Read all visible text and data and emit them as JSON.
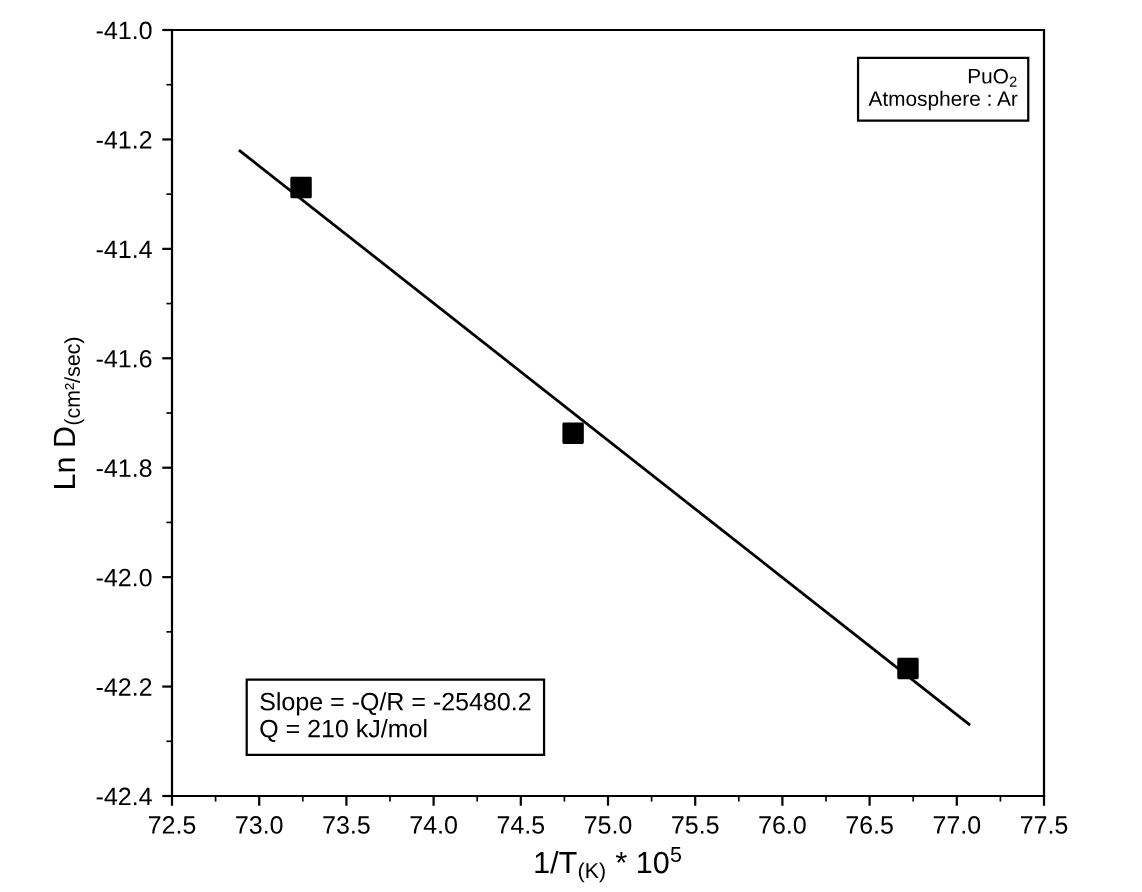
{
  "chart_data": {
    "type": "scatter",
    "xlabel": "1/T$_{(K)}$ * 10$^{5}$",
    "ylabel": "Ln D$_{(cm²/sec)}$",
    "series": [
      {
        "color": "#000000",
        "marker": "square",
        "x": [
          73.24,
          74.8,
          76.72
        ],
        "values": [
          -41.288,
          -41.737,
          -42.167
        ]
      },
      {
        "type": "line",
        "color": "#000000",
        "marker": "none",
        "line_style": "solid",
        "x": [
          72.89,
          77.07
        ],
        "values": [
          -41.221,
          -42.269
        ]
      }
    ],
    "annotations": [
      "PuO$_{2}$\nAtmosphere : Ar",
      "Slope = -Q/R = -25480.2\nQ = 210 kJ/mol"
    ],
    "xlim": [
      72.5,
      77.5
    ],
    "xticks": [
      72.5,
      {
        "value": 73,
        "label": "73.0"
      },
      73.5,
      {
        "value": 74,
        "label": "74.0"
      },
      74.5,
      {
        "value": 75,
        "label": "75.0"
      },
      75.5,
      {
        "value": 76,
        "label": "76.0"
      },
      76.5,
      {
        "value": 77,
        "label": "77.0"
      },
      77.5
    ],
    "ylim": [
      -42.4,
      -41.0
    ],
    "yticks": [
      {
        "value": -42.4,
        "label": "-42.4"
      },
      {
        "value": -42.2,
        "label": "-42.2"
      },
      {
        "value": -42.0,
        "label": "-42.0"
      },
      {
        "value": -41.8,
        "label": "-41.8"
      },
      {
        "value": -41.6,
        "label": "-41.6"
      },
      {
        "value": -41.4,
        "label": "-41.4"
      },
      {
        "value": -41.2,
        "label": "-41.2"
      },
      {
        "value": -41.0,
        "label": "-41.0"
      }
    ],
    "grid": false,
    "legend": false
  }
}
